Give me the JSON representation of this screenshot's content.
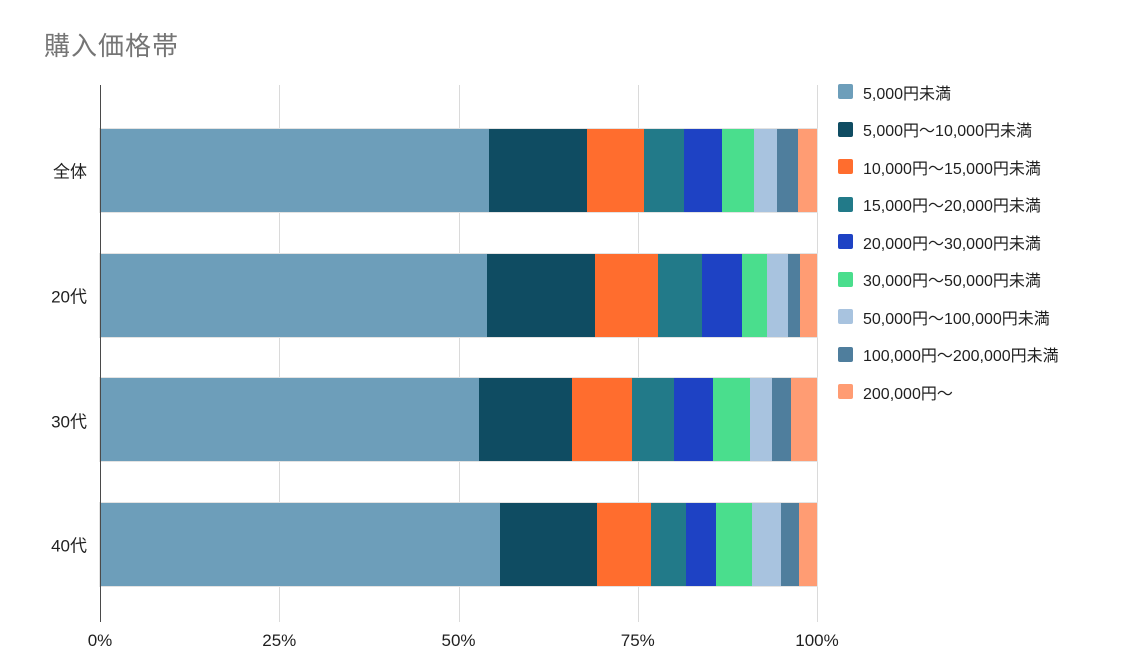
{
  "title": "購入価格帯",
  "palette": {
    "title_text": "#757575",
    "body_text": "#1F1F1F",
    "gridline": "#DADADA",
    "axis_line": "#4A4A4A",
    "background": "#FFFFFF"
  },
  "chart_data": {
    "type": "bar",
    "orientation": "horizontal",
    "stacked": true,
    "unit": "%",
    "title": "購入価格帯",
    "xlabel": "",
    "ylabel": "",
    "xlim": [
      0,
      100
    ],
    "grid": true,
    "legend_position": "right",
    "categories": [
      "全体",
      "20代",
      "30代",
      "40代"
    ],
    "series": [
      {
        "name": "5,000円未満",
        "color": "#6D9EBA",
        "values": [
          54.2,
          54.0,
          52.8,
          55.8
        ]
      },
      {
        "name": "5,000円〜10,000円未満",
        "color": "#0F4C62",
        "values": [
          13.7,
          15.1,
          13.1,
          13.5
        ]
      },
      {
        "name": "10,000円〜15,000円未満",
        "color": "#FF6D2E",
        "values": [
          8.0,
          8.7,
          8.3,
          7.6
        ]
      },
      {
        "name": "15,000円〜20,000円未満",
        "color": "#227A89",
        "values": [
          5.6,
          6.1,
          5.8,
          4.9
        ]
      },
      {
        "name": "20,000円〜30,000円未満",
        "color": "#1E42C4",
        "values": [
          5.3,
          5.6,
          5.5,
          4.1
        ]
      },
      {
        "name": "30,000円〜50,000円未満",
        "color": "#4ADE8D",
        "values": [
          4.4,
          3.5,
          5.2,
          5.0
        ]
      },
      {
        "name": "50,000円〜100,000円未満",
        "color": "#A8C3DF",
        "values": [
          3.2,
          2.9,
          3.1,
          4.1
        ]
      },
      {
        "name": "100,000円〜200,000円未満",
        "color": "#4F7E9D",
        "values": [
          2.9,
          1.7,
          2.6,
          2.5
        ]
      },
      {
        "name": "200,000円〜",
        "color": "#FF9C73",
        "values": [
          2.7,
          2.4,
          3.6,
          2.5
        ]
      }
    ],
    "x_axis": {
      "tick_values": [
        0,
        25,
        50,
        75,
        100
      ],
      "tick_labels": [
        "0%",
        "25%",
        "50%",
        "75%",
        "100%"
      ]
    }
  }
}
